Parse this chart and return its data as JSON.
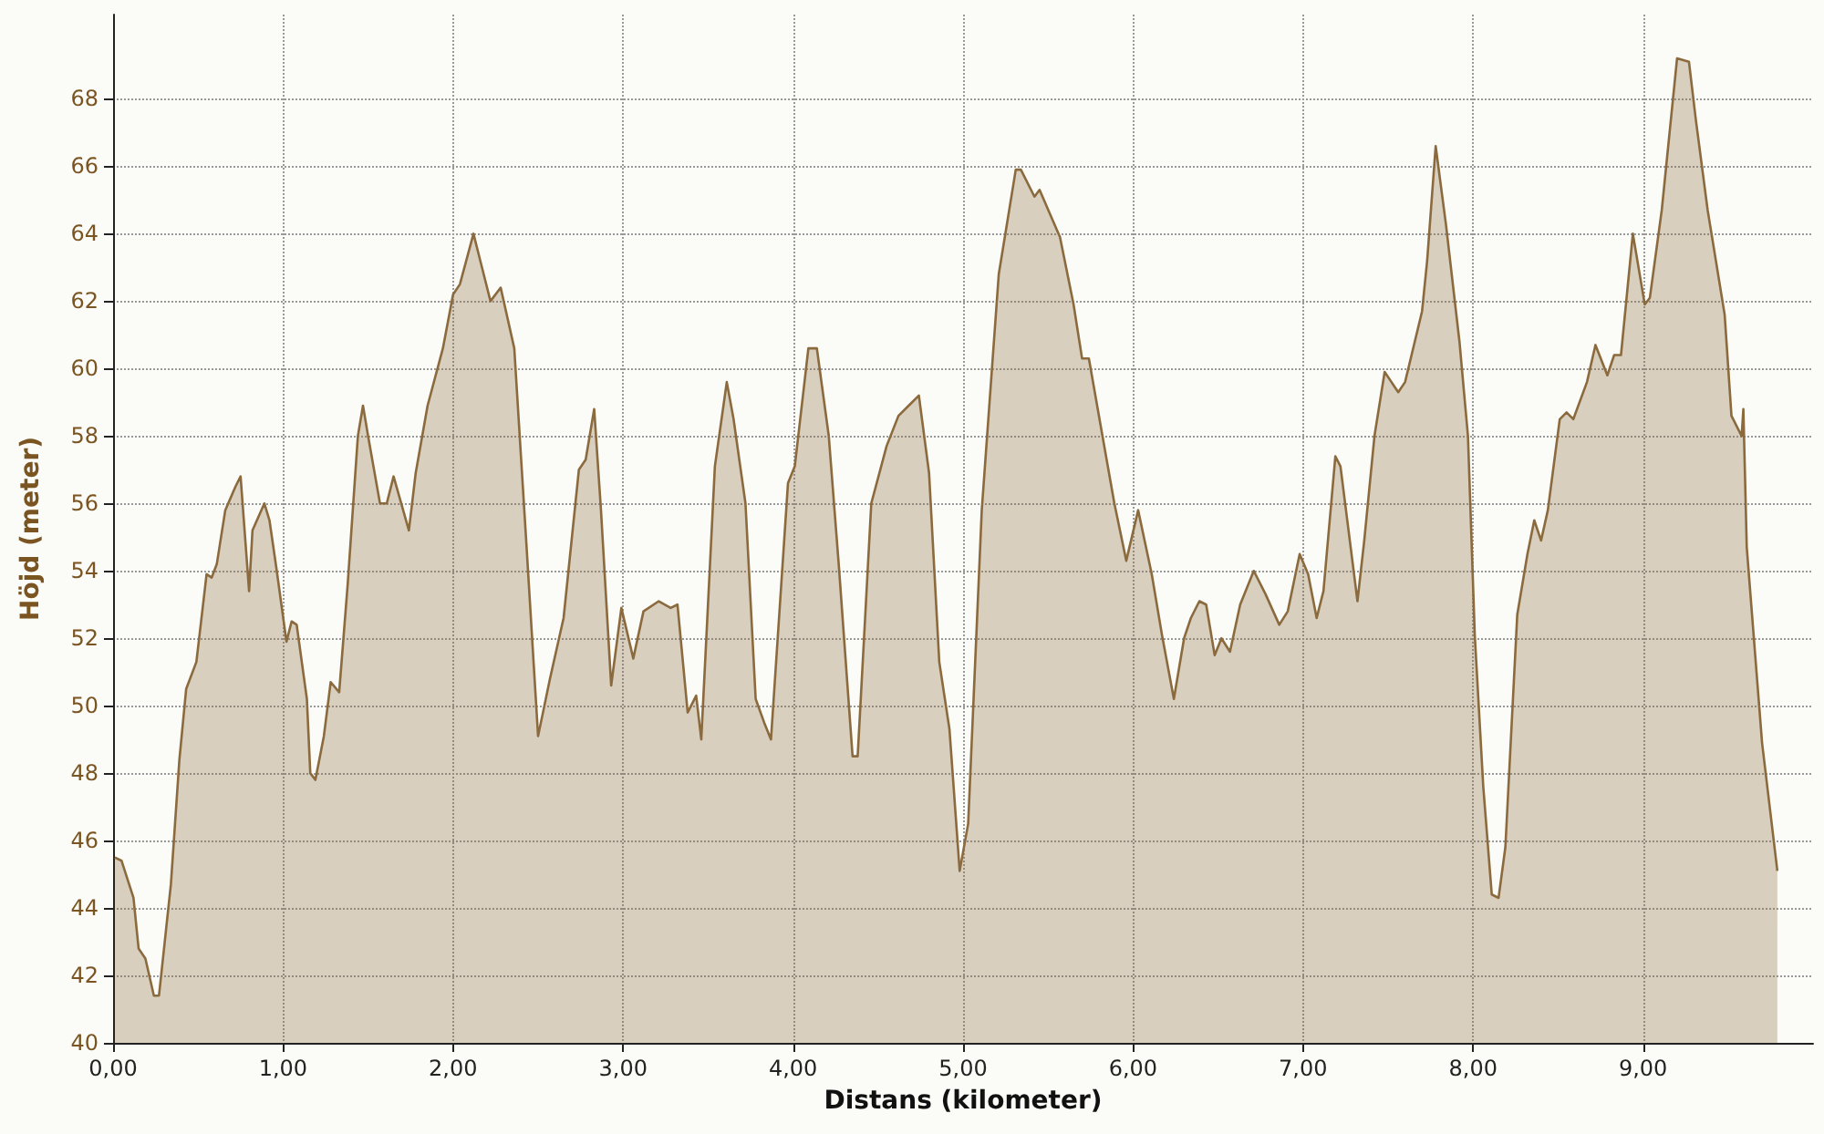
{
  "chart_data": {
    "type": "area",
    "xlabel": "Distans (kilometer)",
    "ylabel": "Höjd (meter)",
    "xlim": [
      0,
      10
    ],
    "ylim": [
      40,
      70.5
    ],
    "xticks": [
      {
        "value": 0,
        "label": "0,00"
      },
      {
        "value": 1,
        "label": "1,00"
      },
      {
        "value": 2,
        "label": "2,00"
      },
      {
        "value": 3,
        "label": "3,00"
      },
      {
        "value": 4,
        "label": "4,00"
      },
      {
        "value": 5,
        "label": "5,00"
      },
      {
        "value": 6,
        "label": "6,00"
      },
      {
        "value": 7,
        "label": "7,00"
      },
      {
        "value": 8,
        "label": "8,00"
      },
      {
        "value": 9,
        "label": "9,00"
      }
    ],
    "yticks": [
      40,
      42,
      44,
      46,
      48,
      50,
      52,
      54,
      56,
      58,
      60,
      62,
      64,
      66,
      68
    ],
    "grid": true,
    "marker": "none",
    "line_style": "solid",
    "series": [
      {
        "color": "#8b6a3e",
        "x": [
          0.01,
          0.05,
          0.12,
          0.15,
          0.19,
          0.24,
          0.27,
          0.34,
          0.39,
          0.43,
          0.49,
          0.55,
          0.58,
          0.61,
          0.66,
          0.72,
          0.75,
          0.8,
          0.82,
          0.89,
          0.92,
          0.96,
          1.02,
          1.05,
          1.08,
          1.14,
          1.16,
          1.19,
          1.24,
          1.28,
          1.33,
          1.38,
          1.44,
          1.47,
          1.5,
          1.57,
          1.61,
          1.65,
          1.74,
          1.78,
          1.85,
          1.94,
          2.0,
          2.04,
          2.12,
          2.16,
          2.22,
          2.28,
          2.36,
          2.43,
          2.5,
          2.57,
          2.65,
          2.74,
          2.78,
          2.83,
          2.87,
          2.93,
          2.99,
          3.06,
          3.12,
          3.21,
          3.28,
          3.32,
          3.38,
          3.43,
          3.46,
          3.54,
          3.61,
          3.65,
          3.72,
          3.78,
          3.83,
          3.87,
          3.97,
          4.01,
          4.09,
          4.14,
          4.21,
          4.27,
          4.35,
          4.38,
          4.46,
          4.55,
          4.62,
          4.68,
          4.74,
          4.8,
          4.86,
          4.92,
          4.98,
          5.03,
          5.11,
          5.21,
          5.31,
          5.34,
          5.42,
          5.45,
          5.57,
          5.65,
          5.7,
          5.74,
          5.82,
          5.89,
          5.96,
          6.03,
          6.11,
          6.17,
          6.24,
          6.3,
          6.34,
          6.39,
          6.43,
          6.48,
          6.52,
          6.57,
          6.63,
          6.71,
          6.78,
          6.86,
          6.91,
          6.98,
          7.03,
          7.08,
          7.12,
          7.19,
          7.22,
          7.32,
          7.36,
          7.42,
          7.48,
          7.56,
          7.6,
          7.7,
          7.73,
          7.78,
          7.84,
          7.92,
          7.97,
          8.01,
          8.06,
          8.11,
          8.15,
          8.19,
          8.26,
          8.32,
          8.36,
          8.4,
          8.44,
          8.51,
          8.55,
          8.59,
          8.67,
          8.72,
          8.79,
          8.83,
          8.87,
          8.94,
          9.01,
          9.04,
          9.11,
          9.2,
          9.27,
          9.31,
          9.38,
          9.48,
          9.52,
          9.58,
          9.59,
          9.61,
          9.7,
          9.79
        ],
        "values": [
          45.5,
          45.4,
          44.3,
          42.8,
          42.5,
          41.4,
          41.4,
          44.7,
          48.4,
          50.5,
          51.3,
          53.9,
          53.8,
          54.2,
          55.8,
          56.5,
          56.8,
          53.4,
          55.2,
          56.0,
          55.5,
          54.1,
          51.9,
          52.5,
          52.4,
          50.2,
          48.0,
          47.8,
          49.1,
          50.7,
          50.4,
          53.6,
          58.0,
          58.9,
          58.0,
          56.0,
          56.0,
          56.8,
          55.2,
          56.9,
          58.9,
          60.6,
          62.2,
          62.5,
          64.0,
          63.2,
          62.0,
          62.4,
          60.6,
          54.9,
          49.1,
          50.8,
          52.6,
          57.0,
          57.3,
          58.8,
          55.8,
          50.6,
          52.9,
          51.4,
          52.8,
          53.1,
          52.9,
          53.0,
          49.8,
          50.3,
          49.0,
          57.1,
          59.6,
          58.5,
          56.0,
          50.2,
          49.5,
          49.0,
          56.6,
          57.1,
          60.6,
          60.6,
          58.0,
          54.1,
          48.5,
          48.5,
          56.0,
          57.7,
          58.6,
          58.9,
          59.2,
          56.9,
          51.3,
          49.3,
          45.1,
          46.5,
          55.8,
          62.8,
          65.9,
          65.9,
          65.1,
          65.3,
          63.9,
          61.9,
          60.3,
          60.3,
          58.0,
          56.0,
          54.3,
          55.8,
          53.9,
          52.1,
          50.2,
          52.0,
          52.6,
          53.1,
          53.0,
          51.5,
          52.0,
          51.6,
          53.0,
          54.0,
          53.3,
          52.4,
          52.8,
          54.5,
          53.9,
          52.6,
          53.4,
          57.4,
          57.1,
          53.1,
          54.9,
          58.0,
          59.9,
          59.3,
          59.6,
          61.7,
          63.2,
          66.6,
          64.3,
          60.8,
          58.0,
          52.1,
          47.6,
          44.4,
          44.3,
          45.8,
          52.7,
          54.5,
          55.5,
          54.9,
          55.8,
          58.5,
          58.7,
          58.5,
          59.6,
          60.7,
          59.8,
          60.4,
          60.4,
          64.0,
          61.9,
          62.1,
          64.7,
          69.2,
          69.1,
          67.4,
          64.7,
          61.6,
          58.6,
          58.0,
          58.8,
          54.7,
          48.9,
          45.1
        ]
      }
    ]
  }
}
